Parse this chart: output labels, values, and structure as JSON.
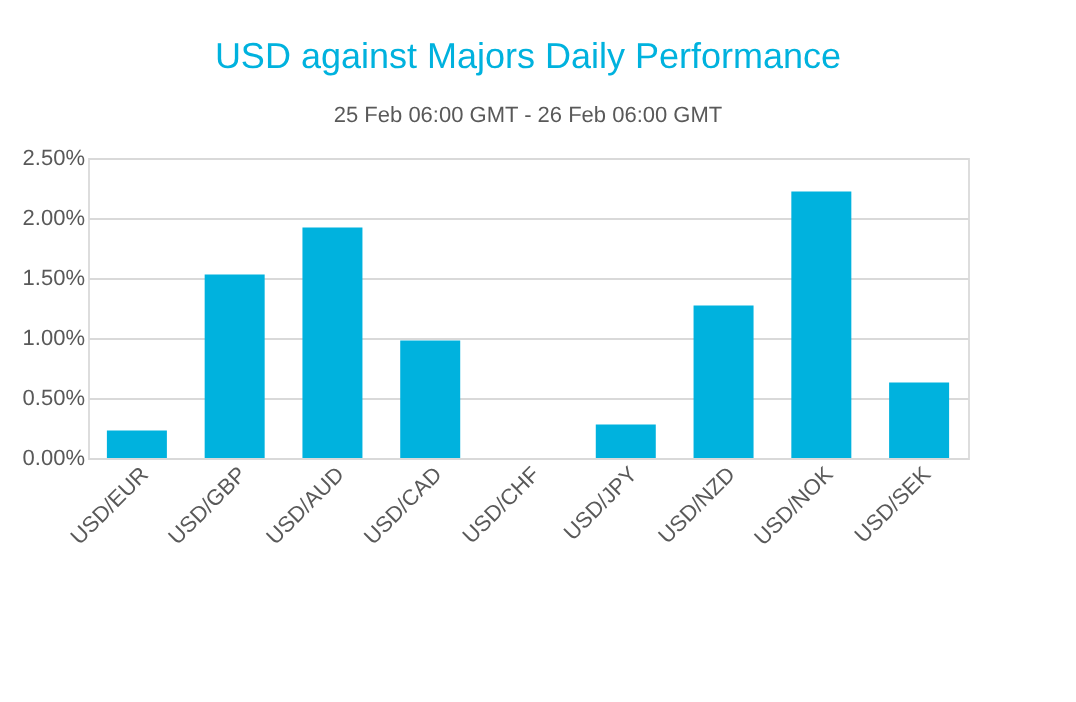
{
  "chart_data": {
    "type": "bar",
    "title": "USD against Majors Daily Performance",
    "subtitle": "25 Feb 06:00 GMT -  26 Feb  06:00 GMT",
    "categories": [
      "USD/EUR",
      "USD/GBP",
      "USD/AUD",
      "USD/CAD",
      "USD/CHF",
      "USD/JPY",
      "USD/NZD",
      "USD/NOK",
      "USD/SEK"
    ],
    "values": [
      0.23,
      1.53,
      1.92,
      0.98,
      0.0,
      0.28,
      1.27,
      2.22,
      0.63
    ],
    "color": "#00b2de",
    "ylim": [
      0,
      2.5
    ],
    "yticks": [
      {
        "value": 0,
        "label": "0.00%"
      },
      {
        "value": 0.5,
        "label": "0.50%"
      },
      {
        "value": 1,
        "label": "1.00%"
      },
      {
        "value": 1.5,
        "label": "1.50%"
      },
      {
        "value": 2,
        "label": "2.00%"
      },
      {
        "value": 2.5,
        "label": "2.50%"
      }
    ],
    "grid": "y"
  }
}
